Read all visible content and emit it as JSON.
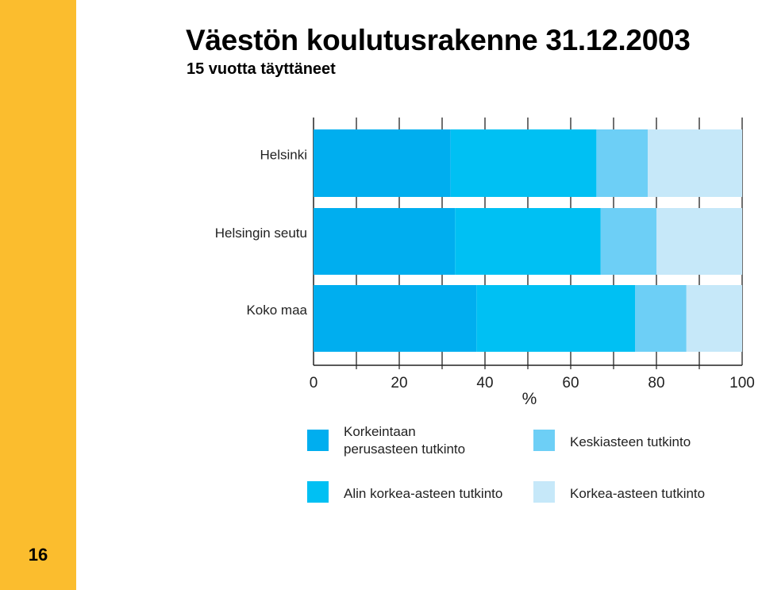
{
  "page": {
    "title": "Väestön koulutusrakenne 31.12.2003",
    "subtitle": "15 vuotta täyttäneet",
    "page_number": "16",
    "accent_color": "#fbbd2e"
  },
  "chart_data": {
    "type": "bar",
    "orientation": "horizontal",
    "stacked": true,
    "title": "Väestön koulutusrakenne 31.12.2003",
    "subtitle": "15 vuotta täyttäneet",
    "xlabel": "%",
    "ylabel": "",
    "xlim": [
      0,
      100
    ],
    "xticks": [
      0,
      20,
      40,
      60,
      80,
      100
    ],
    "grid": true,
    "legend_position": "bottom",
    "categories": [
      "Helsinki",
      "Helsingin seutu",
      "Koko maa"
    ],
    "series": [
      {
        "name": "Korkeintaan perusasteen tutkinto",
        "color": "#00aeef",
        "values": [
          32,
          33,
          38
        ]
      },
      {
        "name": "Alin korkea-asteen tutkinto",
        "color": "#00c0f3",
        "values": [
          34,
          34,
          37
        ]
      },
      {
        "name": "Keskiasteen tutkinto",
        "color": "#6dcff6",
        "values": [
          12,
          13,
          12
        ]
      },
      {
        "name": "Korkea-asteen tutkinto",
        "color": "#c6e8f9",
        "values": [
          22,
          20,
          13
        ]
      }
    ]
  }
}
